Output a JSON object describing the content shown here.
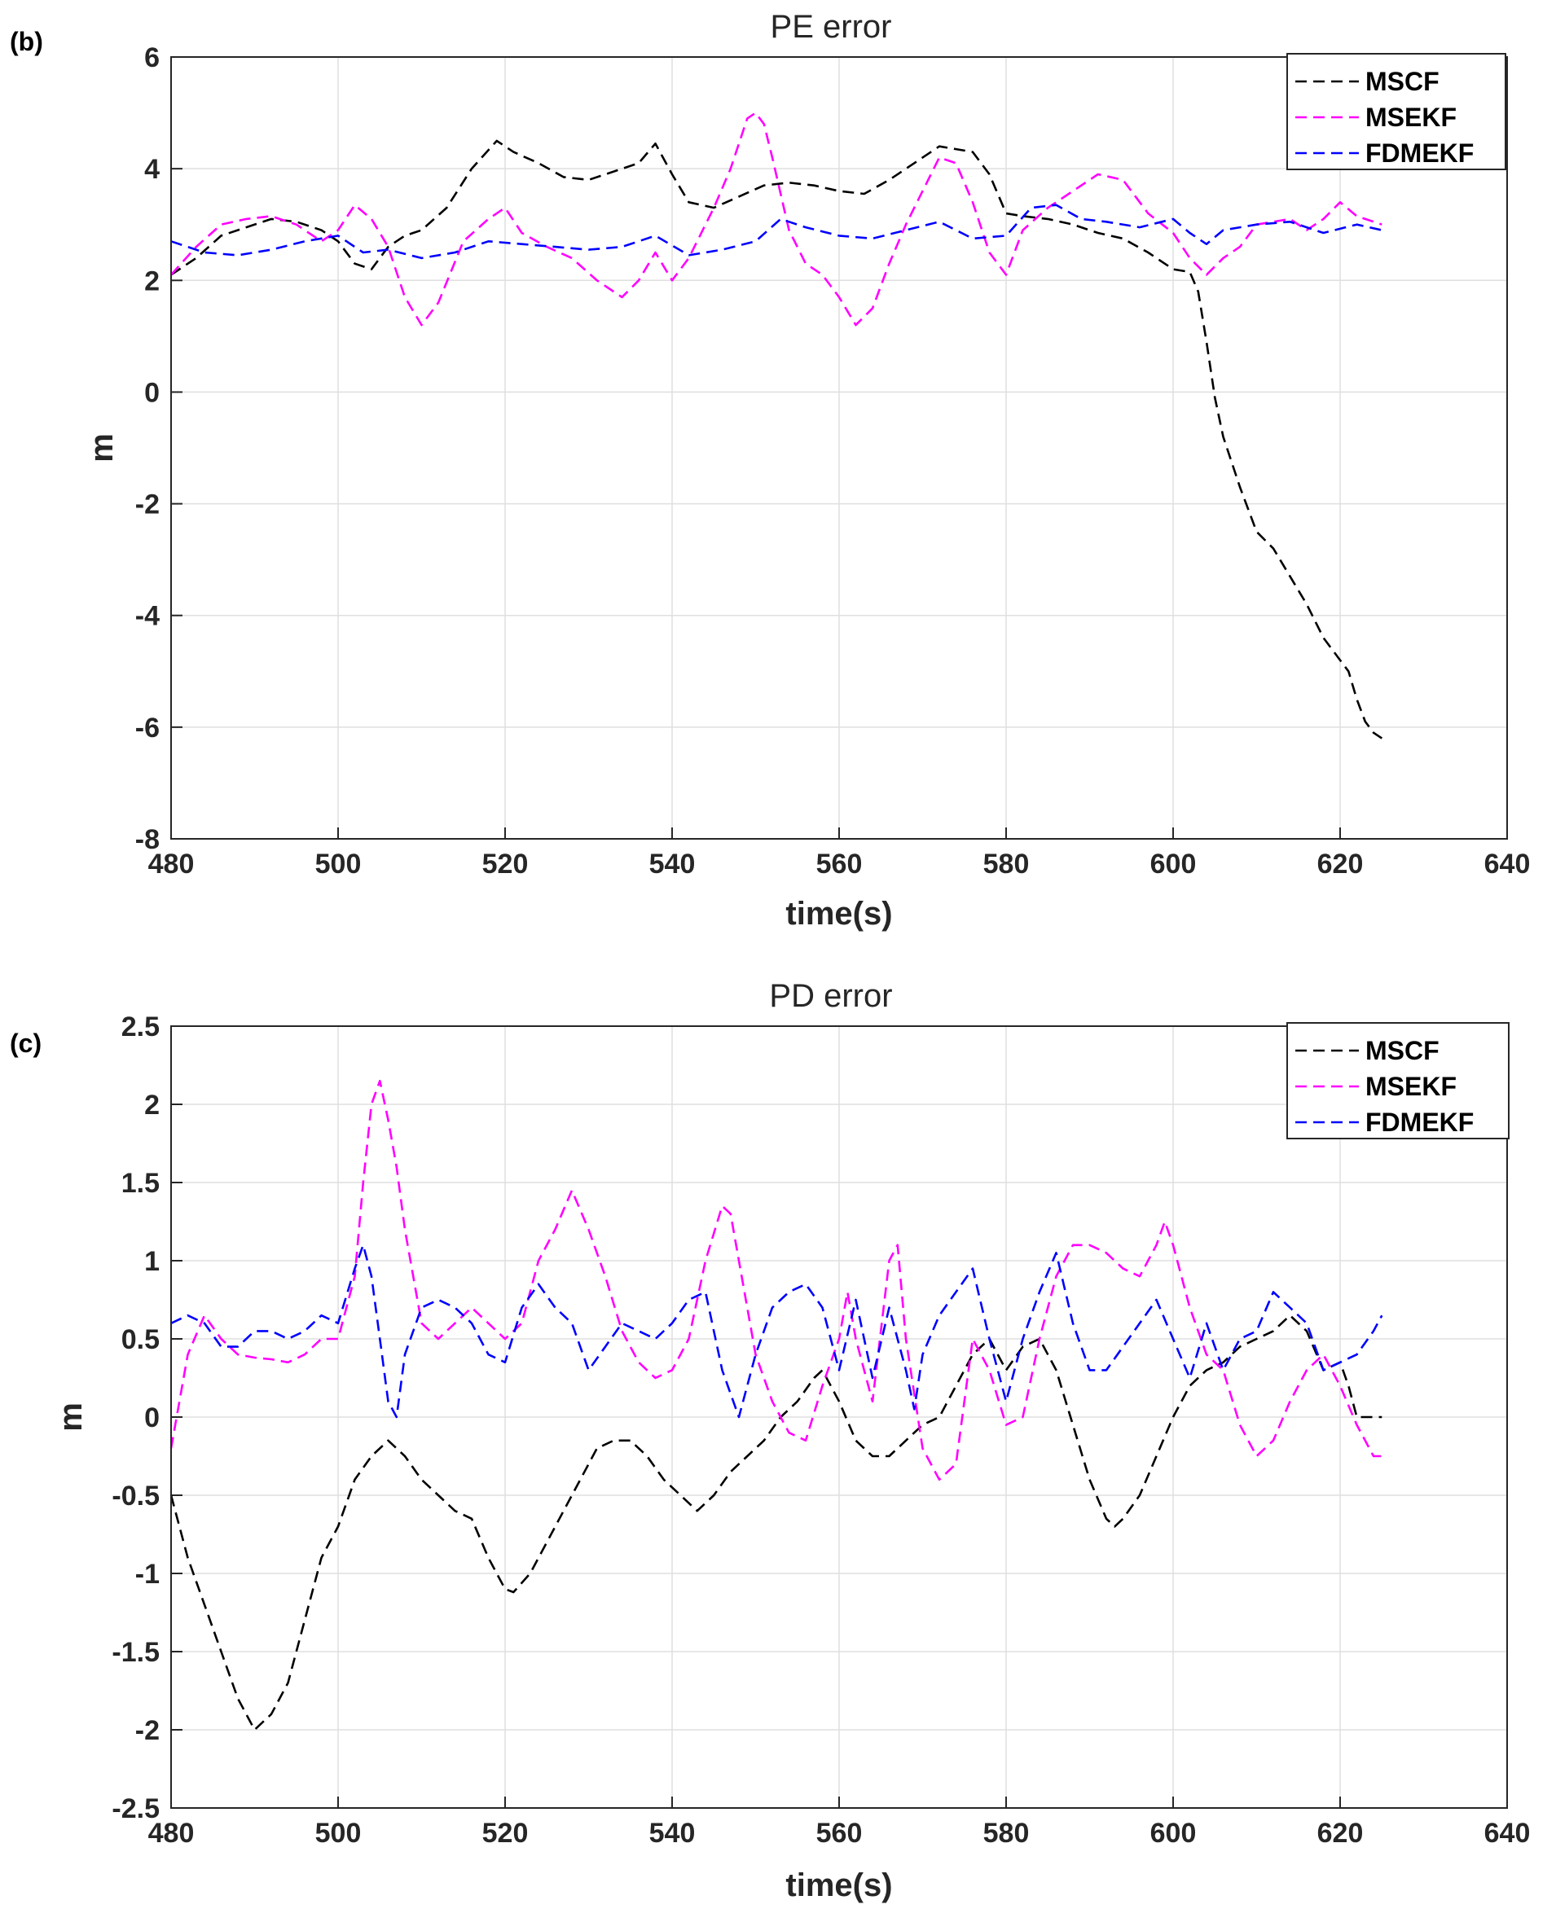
{
  "chart_data": [
    {
      "type": "line",
      "panel_label": "(b)",
      "title": "PE error",
      "xlabel": "time(s)",
      "ylabel": "m",
      "xlim": [
        480,
        640
      ],
      "ylim": [
        -8,
        6
      ],
      "xticks": [
        480,
        500,
        520,
        540,
        560,
        580,
        600,
        620,
        640
      ],
      "yticks": [
        -8,
        -6,
        -4,
        -2,
        0,
        2,
        4,
        6
      ],
      "ytick_labels": [
        "-8",
        "-6",
        "-4",
        "-2",
        "0",
        "2",
        "4",
        "6"
      ],
      "grid": true,
      "legend_position": "top-right",
      "series": [
        {
          "name": "MSCF",
          "color": "#000000",
          "x": [
            480,
            483,
            486,
            489,
            492,
            495,
            498,
            500,
            502,
            504,
            506,
            508,
            510,
            513,
            516,
            519,
            521,
            524,
            527,
            530,
            533,
            536,
            538,
            540,
            542,
            545,
            548,
            551,
            554,
            557,
            560,
            563,
            566,
            569,
            572,
            574,
            576,
            578,
            580,
            582,
            585,
            588,
            591,
            594,
            597,
            600,
            602,
            603,
            604,
            605,
            606,
            608,
            610,
            612,
            614,
            616,
            618,
            620,
            621,
            622,
            623,
            624,
            625
          ],
          "y": [
            2.1,
            2.4,
            2.8,
            2.95,
            3.1,
            3.05,
            2.9,
            2.7,
            2.3,
            2.2,
            2.6,
            2.8,
            2.9,
            3.3,
            4.0,
            4.5,
            4.3,
            4.1,
            3.85,
            3.8,
            3.95,
            4.1,
            4.45,
            3.9,
            3.4,
            3.3,
            3.5,
            3.7,
            3.75,
            3.7,
            3.6,
            3.55,
            3.8,
            4.1,
            4.4,
            4.35,
            4.3,
            3.9,
            3.2,
            3.15,
            3.1,
            3.0,
            2.85,
            2.75,
            2.5,
            2.2,
            2.15,
            1.8,
            0.9,
            -0.1,
            -0.8,
            -1.7,
            -2.5,
            -2.8,
            -3.3,
            -3.8,
            -4.4,
            -4.8,
            -5.0,
            -5.5,
            -5.9,
            -6.1,
            -6.2
          ]
        },
        {
          "name": "MSEKF",
          "color": "#ff00ff",
          "x": [
            480,
            483,
            486,
            489,
            492,
            495,
            498,
            500,
            502,
            504,
            506,
            508,
            510,
            512,
            515,
            518,
            520,
            522,
            525,
            528,
            531,
            534,
            536,
            538,
            540,
            542,
            545,
            547,
            549,
            550,
            551,
            552,
            554,
            556,
            558,
            560,
            562,
            564,
            566,
            568,
            570,
            572,
            574,
            576,
            578,
            580,
            582,
            585,
            588,
            591,
            594,
            597,
            600,
            602,
            604,
            606,
            608,
            610,
            612,
            614,
            616,
            618,
            620,
            622,
            625
          ],
          "y": [
            2.1,
            2.6,
            3.0,
            3.1,
            3.15,
            3.0,
            2.7,
            2.9,
            3.35,
            3.1,
            2.6,
            1.7,
            1.2,
            1.6,
            2.7,
            3.1,
            3.3,
            2.85,
            2.6,
            2.4,
            2.0,
            1.7,
            2.0,
            2.5,
            2.0,
            2.4,
            3.3,
            4.0,
            4.9,
            5.0,
            4.8,
            4.2,
            2.9,
            2.3,
            2.1,
            1.7,
            1.2,
            1.5,
            2.3,
            3.0,
            3.6,
            4.2,
            4.1,
            3.4,
            2.5,
            2.1,
            2.9,
            3.3,
            3.6,
            3.9,
            3.8,
            3.2,
            2.85,
            2.4,
            2.1,
            2.4,
            2.6,
            3.0,
            3.05,
            3.1,
            2.9,
            3.1,
            3.4,
            3.15,
            3.0
          ]
        },
        {
          "name": "FDMEKF",
          "color": "#0000ff",
          "x": [
            480,
            484,
            488,
            492,
            496,
            500,
            503,
            506,
            510,
            514,
            518,
            522,
            526,
            530,
            534,
            538,
            542,
            546,
            550,
            553,
            556,
            560,
            564,
            568,
            572,
            576,
            580,
            583,
            586,
            589,
            592,
            596,
            600,
            602,
            604,
            606,
            610,
            614,
            618,
            622,
            625
          ],
          "y": [
            2.7,
            2.5,
            2.45,
            2.55,
            2.7,
            2.8,
            2.5,
            2.55,
            2.4,
            2.5,
            2.7,
            2.65,
            2.6,
            2.55,
            2.6,
            2.8,
            2.45,
            2.55,
            2.7,
            3.1,
            2.95,
            2.8,
            2.75,
            2.9,
            3.05,
            2.75,
            2.8,
            3.3,
            3.35,
            3.1,
            3.05,
            2.95,
            3.1,
            2.85,
            2.65,
            2.9,
            3.0,
            3.05,
            2.85,
            3.0,
            2.9
          ]
        }
      ]
    },
    {
      "type": "line",
      "panel_label": "(c)",
      "title": "PD error",
      "xlabel": "time(s)",
      "ylabel": "m",
      "xlim": [
        480,
        640
      ],
      "ylim": [
        -2.5,
        2.5
      ],
      "xticks": [
        480,
        500,
        520,
        540,
        560,
        580,
        600,
        620,
        640
      ],
      "yticks": [
        -2.5,
        -2,
        -1.5,
        -1,
        -0.5,
        0,
        0.5,
        1,
        1.5,
        2,
        2.5
      ],
      "ytick_labels": [
        "-2.5",
        "-2",
        "-1.5",
        "-1",
        "-0.5",
        "0",
        "0.5",
        "1",
        "1.5",
        "2",
        "2.5"
      ],
      "grid": true,
      "legend_position": "top-right",
      "series": [
        {
          "name": "MSCF",
          "color": "#000000",
          "x": [
            480,
            482,
            484,
            486,
            488,
            490,
            492,
            494,
            496,
            498,
            500,
            502,
            504,
            506,
            508,
            510,
            512,
            514,
            516,
            518,
            520,
            521,
            523,
            525,
            527,
            529,
            531,
            533,
            535,
            537,
            539,
            541,
            543,
            545,
            547,
            549,
            551,
            553,
            555,
            557,
            558,
            560,
            562,
            564,
            566,
            568,
            570,
            572,
            574,
            576,
            578,
            580,
            582,
            584,
            586,
            588,
            590,
            592,
            593,
            594,
            596,
            598,
            600,
            602,
            604,
            606,
            608,
            610,
            612,
            614,
            616,
            618,
            620,
            621,
            622,
            623,
            625
          ],
          "y": [
            -0.5,
            -0.9,
            -1.2,
            -1.5,
            -1.8,
            -2.0,
            -1.9,
            -1.7,
            -1.3,
            -0.9,
            -0.7,
            -0.4,
            -0.25,
            -0.15,
            -0.25,
            -0.4,
            -0.5,
            -0.6,
            -0.65,
            -0.9,
            -1.1,
            -1.12,
            -1.0,
            -0.8,
            -0.6,
            -0.4,
            -0.2,
            -0.15,
            -0.15,
            -0.25,
            -0.4,
            -0.5,
            -0.6,
            -0.5,
            -0.35,
            -0.25,
            -0.15,
            0.0,
            0.1,
            0.25,
            0.3,
            0.1,
            -0.15,
            -0.25,
            -0.25,
            -0.15,
            -0.05,
            0.0,
            0.2,
            0.4,
            0.5,
            0.3,
            0.45,
            0.5,
            0.3,
            -0.05,
            -0.4,
            -0.65,
            -0.7,
            -0.65,
            -0.5,
            -0.25,
            0.0,
            0.2,
            0.3,
            0.35,
            0.45,
            0.5,
            0.55,
            0.65,
            0.55,
            0.3,
            0.35,
            0.2,
            0.0,
            0.0,
            0.0
          ]
        },
        {
          "name": "MSEKF",
          "color": "#ff00ff",
          "x": [
            480,
            482,
            484,
            486,
            488,
            490,
            492,
            494,
            496,
            498,
            500,
            502,
            503,
            504,
            505,
            506,
            507,
            508,
            510,
            512,
            514,
            516,
            518,
            520,
            522,
            524,
            526,
            528,
            530,
            532,
            534,
            536,
            538,
            540,
            542,
            544,
            546,
            547,
            548,
            550,
            552,
            554,
            556,
            558,
            560,
            561,
            562,
            564,
            566,
            567,
            568,
            570,
            572,
            574,
            576,
            578,
            580,
            582,
            584,
            586,
            588,
            590,
            592,
            594,
            596,
            598,
            599,
            600,
            602,
            604,
            606,
            608,
            610,
            612,
            614,
            616,
            618,
            620,
            622,
            624,
            625
          ],
          "y": [
            -0.2,
            0.4,
            0.65,
            0.5,
            0.4,
            0.38,
            0.37,
            0.35,
            0.4,
            0.5,
            0.5,
            0.9,
            1.5,
            2.0,
            2.15,
            1.9,
            1.6,
            1.2,
            0.6,
            0.5,
            0.6,
            0.7,
            0.6,
            0.5,
            0.6,
            1.0,
            1.2,
            1.45,
            1.2,
            0.9,
            0.55,
            0.35,
            0.25,
            0.3,
            0.5,
            1.0,
            1.35,
            1.3,
            1.0,
            0.4,
            0.1,
            -0.1,
            -0.15,
            0.2,
            0.5,
            0.8,
            0.5,
            0.1,
            1.0,
            1.1,
            0.5,
            -0.2,
            -0.4,
            -0.3,
            0.5,
            0.3,
            -0.05,
            0.0,
            0.5,
            0.9,
            1.1,
            1.1,
            1.05,
            0.95,
            0.9,
            1.1,
            1.25,
            1.1,
            0.7,
            0.4,
            0.3,
            -0.05,
            -0.25,
            -0.15,
            0.1,
            0.3,
            0.4,
            0.2,
            -0.05,
            -0.25,
            -0.25
          ]
        },
        {
          "name": "FDMEKF",
          "color": "#0000ff",
          "x": [
            480,
            482,
            484,
            486,
            488,
            490,
            492,
            494,
            496,
            498,
            500,
            502,
            503,
            504,
            505,
            506,
            507,
            508,
            510,
            512,
            514,
            516,
            518,
            520,
            522,
            524,
            526,
            528,
            530,
            532,
            534,
            536,
            538,
            540,
            542,
            544,
            546,
            548,
            550,
            552,
            554,
            556,
            558,
            560,
            562,
            564,
            566,
            568,
            569,
            570,
            572,
            574,
            576,
            578,
            580,
            582,
            584,
            586,
            588,
            590,
            592,
            594,
            596,
            598,
            600,
            602,
            604,
            606,
            608,
            610,
            612,
            614,
            616,
            618,
            620,
            622,
            624,
            625
          ],
          "y": [
            0.6,
            0.65,
            0.6,
            0.45,
            0.45,
            0.55,
            0.55,
            0.5,
            0.55,
            0.65,
            0.6,
            0.95,
            1.1,
            0.9,
            0.5,
            0.1,
            0.0,
            0.4,
            0.7,
            0.75,
            0.7,
            0.6,
            0.4,
            0.35,
            0.7,
            0.85,
            0.7,
            0.6,
            0.3,
            0.45,
            0.6,
            0.55,
            0.5,
            0.6,
            0.75,
            0.8,
            0.3,
            0.0,
            0.4,
            0.7,
            0.8,
            0.85,
            0.7,
            0.3,
            0.75,
            0.25,
            0.7,
            0.3,
            0.05,
            0.4,
            0.65,
            0.8,
            0.95,
            0.5,
            0.1,
            0.5,
            0.8,
            1.05,
            0.6,
            0.3,
            0.3,
            0.45,
            0.6,
            0.75,
            0.5,
            0.25,
            0.6,
            0.3,
            0.5,
            0.55,
            0.8,
            0.7,
            0.6,
            0.3,
            0.35,
            0.4,
            0.55,
            0.65
          ]
        }
      ]
    }
  ]
}
